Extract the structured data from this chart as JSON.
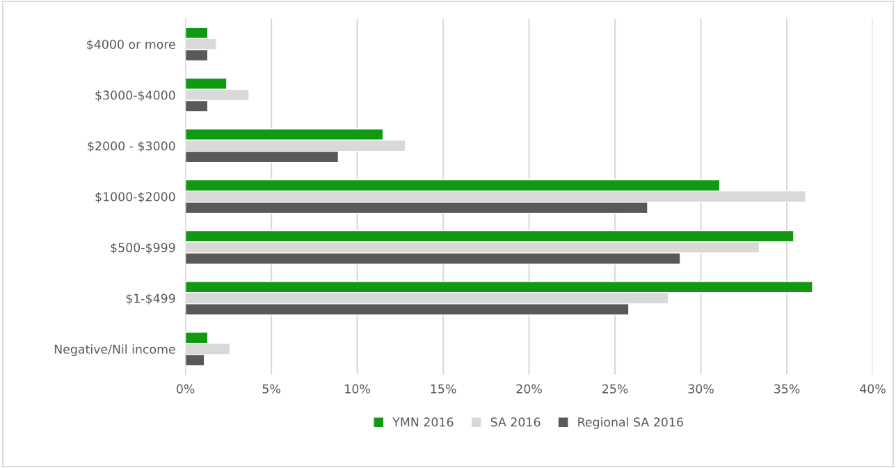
{
  "chart_data": {
    "type": "bar",
    "orientation": "horizontal",
    "categories": [
      "$4000 or more",
      "$3000-$4000",
      "$2000 - $3000",
      "$1000-$2000",
      "$500-$999",
      "$1-$499",
      "Negative/Nil income"
    ],
    "series": [
      {
        "name": "YMN 2016",
        "color": "#119a11",
        "values": [
          1.3,
          2.4,
          11.5,
          31.1,
          35.4,
          36.5,
          1.3
        ]
      },
      {
        "name": "SA 2016",
        "color": "#d9d9d9",
        "values": [
          1.8,
          3.7,
          12.8,
          36.1,
          33.4,
          28.1,
          2.6
        ]
      },
      {
        "name": "Regional SA 2016",
        "color": "#595959",
        "values": [
          1.3,
          1.3,
          8.9,
          26.9,
          28.8,
          25.8,
          1.1
        ]
      }
    ],
    "xlim": [
      0,
      40
    ],
    "xticks": [
      {
        "value": 0,
        "label": "0%"
      },
      {
        "value": 5,
        "label": "5%"
      },
      {
        "value": 10,
        "label": "10%"
      },
      {
        "value": 15,
        "label": "15%"
      },
      {
        "value": 20,
        "label": "20%"
      },
      {
        "value": 25,
        "label": "25%"
      },
      {
        "value": 30,
        "label": "30%"
      },
      {
        "value": 35,
        "label": "35%"
      },
      {
        "value": 40,
        "label": "40%"
      }
    ],
    "grid": "x",
    "legend": "bottom"
  }
}
